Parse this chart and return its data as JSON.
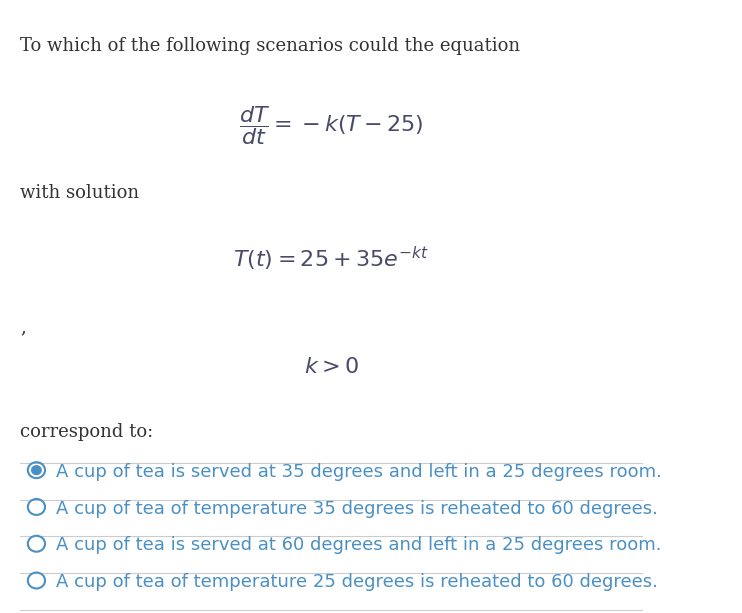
{
  "background_color": "#ffffff",
  "text_color": "#333333",
  "math_color": "#4a4a6a",
  "option_text_color": "#4a90c4",
  "intro_text": "To which of the following scenarios could the equation",
  "with_solution_text": "with solution",
  "comma_text": ",",
  "correspond_text": "correspond to:",
  "options": [
    "A cup of tea is served at 35 degrees and left in a 25 degrees room.",
    "A cup of tea of temperature 35 degrees is reheated to 60 degrees.",
    "A cup of tea is served at 60 degrees and left in a 25 degrees room.",
    "A cup of tea of temperature 25 degrees is reheated to 60 degrees."
  ],
  "selected_option": 0,
  "divider_color": "#cccccc",
  "circle_color": "#4a90c4",
  "figsize": [
    7.42,
    6.13
  ],
  "dpi": 100
}
